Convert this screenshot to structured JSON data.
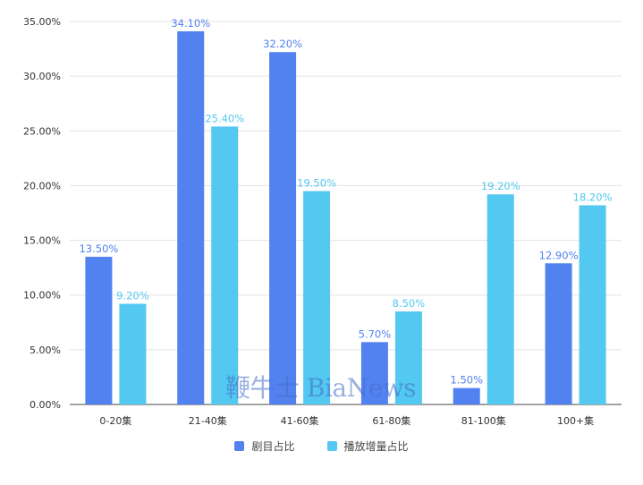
{
  "chart_data": {
    "type": "bar",
    "title": "",
    "xlabel": "",
    "ylabel": "",
    "categories": [
      "0-20集",
      "21-40集",
      "41-60集",
      "61-80集",
      "81-100集",
      "100+集"
    ],
    "series": [
      {
        "name": "剧目占比",
        "values": [
          13.5,
          34.1,
          32.2,
          5.7,
          1.5,
          12.9
        ],
        "labels": [
          "13.50%",
          "34.10%",
          "32.20%",
          "5.70%",
          "1.50%",
          "12.90%"
        ],
        "color": "#5282f0"
      },
      {
        "name": "播放增量占比",
        "values": [
          9.2,
          25.4,
          19.5,
          8.5,
          19.2,
          18.2
        ],
        "labels": [
          "9.20%",
          "25.40%",
          "19.50%",
          "8.50%",
          "19.20%",
          "18.20%"
        ],
        "color": "#53c8f0"
      }
    ],
    "ylim": [
      0,
      35
    ],
    "yticks": [
      0,
      5,
      10,
      15,
      20,
      25,
      30,
      35
    ],
    "ytick_labels": [
      "0.00%",
      "5.00%",
      "10.00%",
      "15.00%",
      "20.00%",
      "25.00%",
      "30.00%",
      "35.00%"
    ],
    "grid": true,
    "legend_position": "bottom"
  },
  "watermark": {
    "text": "鞭牛士 BiaNews",
    "color": "#466ec8"
  }
}
